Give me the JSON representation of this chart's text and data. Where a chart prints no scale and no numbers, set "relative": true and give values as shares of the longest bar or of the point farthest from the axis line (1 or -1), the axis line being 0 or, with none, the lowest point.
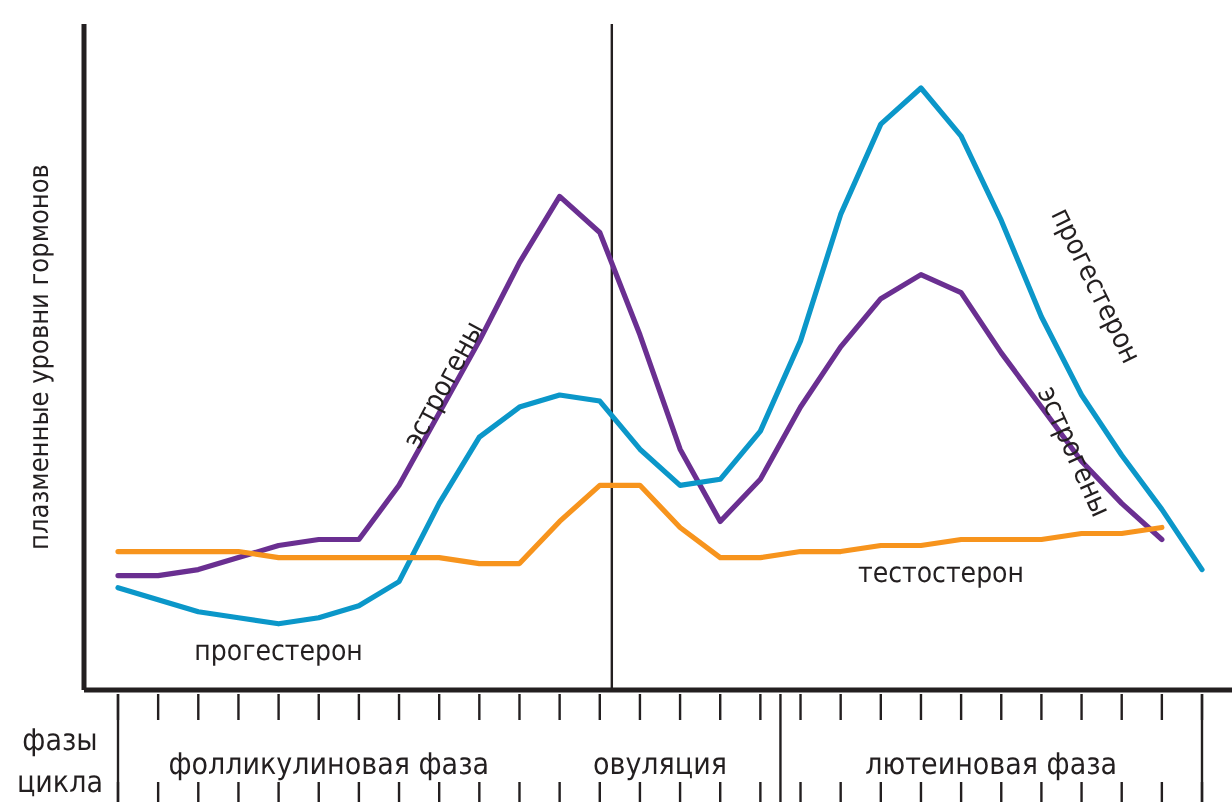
{
  "chart_data": {
    "type": "line",
    "relative": true,
    "xlabel": "фазы цикла",
    "ylabel": "плазменные уровни гормонов",
    "categories": [
      null,
      null,
      null,
      null,
      null,
      null,
      null,
      null,
      null,
      null,
      null,
      null,
      null,
      null,
      null,
      null,
      null,
      null,
      null,
      null,
      null,
      null,
      null,
      null,
      null,
      null,
      null,
      null
    ],
    "marker": "none",
    "line_style": "solid",
    "annotations": [
      "фолликулиновая фаза",
      "овуляция",
      "лютеиновая фаза"
    ],
    "series": [
      {
        "name": "эстрогены",
        "color": "#6a2f91",
        "values": [
          0.19,
          0.19,
          0.2,
          0.22,
          0.24,
          0.25,
          0.25,
          0.34,
          0.46,
          0.58,
          0.71,
          0.82,
          0.76,
          0.59,
          0.4,
          0.28,
          0.35,
          0.47,
          0.57,
          0.65,
          0.69,
          0.66,
          0.56,
          0.47,
          0.38,
          0.31,
          0.25,
          null
        ]
      },
      {
        "name": "прогестерон",
        "color": "#0b97c9",
        "values": [
          0.17,
          0.15,
          0.13,
          0.12,
          0.11,
          0.12,
          0.14,
          0.18,
          0.31,
          0.42,
          0.47,
          0.49,
          0.48,
          0.4,
          0.34,
          0.35,
          0.43,
          0.58,
          0.79,
          0.94,
          1.0,
          0.92,
          0.78,
          0.62,
          0.49,
          0.39,
          0.3,
          0.2
        ]
      },
      {
        "name": "тестостерон",
        "color": "#f7941d",
        "values": [
          0.23,
          0.23,
          0.23,
          0.23,
          0.22,
          0.22,
          0.22,
          0.22,
          0.22,
          0.21,
          0.21,
          0.28,
          0.34,
          0.34,
          0.27,
          0.22,
          0.22,
          0.23,
          0.23,
          0.24,
          0.24,
          0.25,
          0.25,
          0.25,
          0.26,
          0.26,
          0.27,
          null
        ]
      }
    ]
  }
}
